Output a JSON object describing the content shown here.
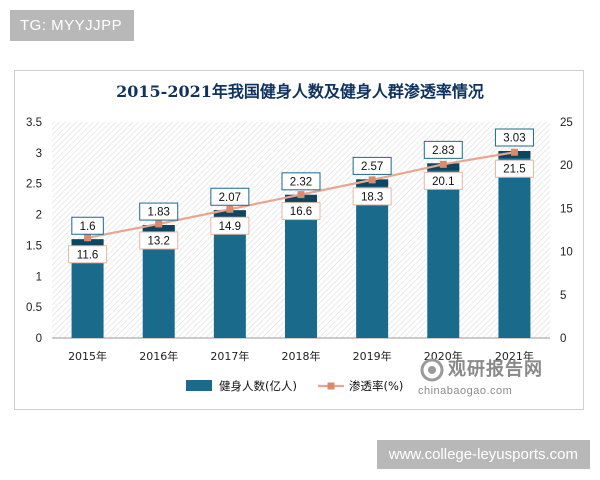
{
  "watermark_top": "TG: MYYJJPP",
  "watermark_bottom": "www.college-leyusports.com",
  "brand": {
    "name": "观研报告网",
    "url": "chinabaogao.com"
  },
  "colors": {
    "bar": "#1a6a8c",
    "bar_top": "#0e4560",
    "line": "#e8a58f",
    "marker": "#d98b6f",
    "title": "#0f3360"
  },
  "chart_data": {
    "type": "bar",
    "title": "2015-2021年我国健身人数及健身人群渗透率情况",
    "categories": [
      "2015年",
      "2016年",
      "2017年",
      "2018年",
      "2019年",
      "2020年",
      "2021年"
    ],
    "series": [
      {
        "name": "健身人数(亿人)",
        "type": "bar",
        "axis": "left",
        "values": [
          1.6,
          1.83,
          2.07,
          2.32,
          2.57,
          2.83,
          3.03
        ]
      },
      {
        "name": "渗透率(%)",
        "type": "line",
        "axis": "right",
        "values": [
          11.6,
          13.2,
          14.9,
          16.6,
          18.3,
          20.1,
          21.5
        ]
      }
    ],
    "left_axis": {
      "range": [
        0,
        3.5
      ],
      "ticks": [
        "0",
        "0.5",
        "1",
        "1.5",
        "2",
        "2.5",
        "3",
        "3.5"
      ]
    },
    "right_axis": {
      "range": [
        0,
        25
      ],
      "ticks": [
        "0",
        "5",
        "10",
        "15",
        "20",
        "25"
      ]
    },
    "legend_position": "bottom",
    "grid": false
  }
}
